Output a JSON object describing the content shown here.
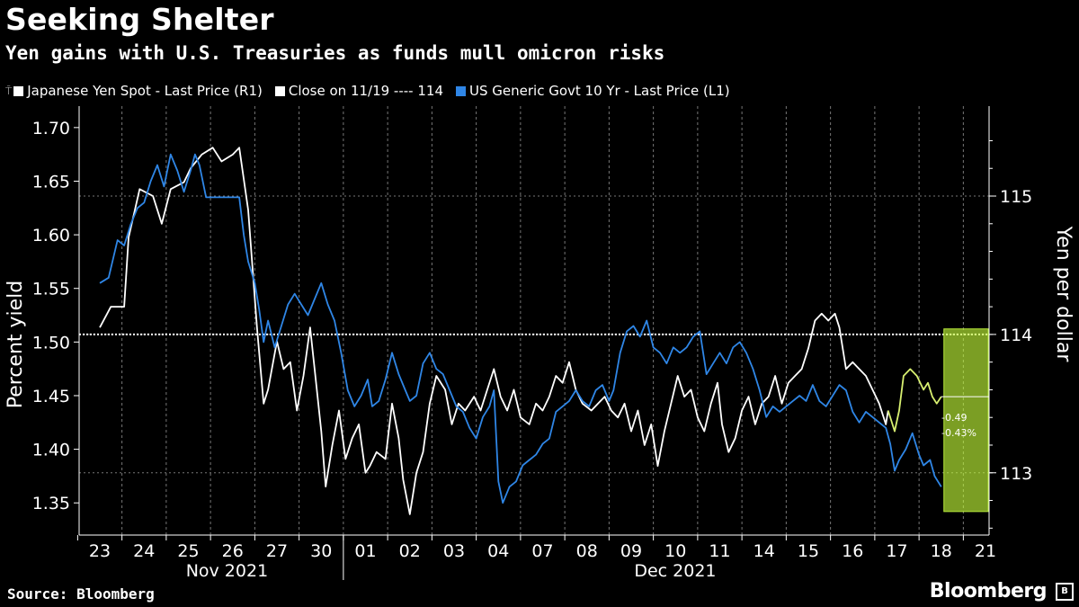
{
  "title": "Seeking Shelter",
  "subtitle": "Yen gains with U.S. Treasuries as funds mull omicron risks",
  "legend": [
    {
      "label": "Japanese Yen Spot - Last Price (R1)",
      "color": "#ffffff"
    },
    {
      "label": "Close on 11/19 ---- 114",
      "color": "#ffffff"
    },
    {
      "label": "US Generic Govt 10 Yr - Last Price (L1)",
      "color": "#2f86e6"
    }
  ],
  "source": "Source: Bloomberg",
  "brand": "Bloomberg",
  "chart_data": {
    "type": "line",
    "ylabel_left": "Percent yield",
    "ylabel_right": "Yen per dollar",
    "ylim_left": [
      1.32,
      1.72
    ],
    "ylim_right": [
      112.55,
      115.65
    ],
    "left_ticks": [
      "1.70",
      "1.65",
      "1.60",
      "1.55",
      "1.50",
      "1.45",
      "1.40",
      "1.35"
    ],
    "right_ticks": [
      "115",
      "114",
      "113"
    ],
    "categories": [
      "23",
      "24",
      "25",
      "26",
      "27",
      "30",
      "01",
      "02",
      "03",
      "04",
      "07",
      "08",
      "09",
      "10",
      "11",
      "14",
      "15",
      "16",
      "17",
      "18",
      "21"
    ],
    "months": [
      "Nov 2021",
      "Dec 2021"
    ],
    "reference_line": {
      "label": "Close on 11/19",
      "value": 114
    },
    "highlight": {
      "from": "18",
      "to": "21"
    },
    "annotations": [
      "-0.49",
      "-0.43%"
    ],
    "series": [
      {
        "name": "Japanese Yen Spot - Last Price (R1)",
        "axis": "right",
        "color": "#ffffff",
        "points": [
          [
            0,
            114.05
          ],
          [
            0.25,
            114.2
          ],
          [
            0.55,
            114.2
          ],
          [
            0.65,
            114.7
          ],
          [
            0.9,
            115.05
          ],
          [
            1.2,
            115.0
          ],
          [
            1.4,
            114.8
          ],
          [
            1.6,
            115.05
          ],
          [
            1.9,
            115.1
          ],
          [
            2.05,
            115.2
          ],
          [
            2.3,
            115.3
          ],
          [
            2.55,
            115.35
          ],
          [
            2.75,
            115.25
          ],
          [
            3.0,
            115.3
          ],
          [
            3.15,
            115.35
          ],
          [
            3.35,
            114.9
          ],
          [
            3.55,
            114.05
          ],
          [
            3.7,
            113.5
          ],
          [
            3.8,
            113.6
          ],
          [
            4.0,
            113.95
          ],
          [
            4.15,
            113.75
          ],
          [
            4.3,
            113.8
          ],
          [
            4.45,
            113.45
          ],
          [
            4.6,
            113.7
          ],
          [
            4.75,
            114.05
          ],
          [
            4.85,
            113.75
          ],
          [
            5.0,
            113.3
          ],
          [
            5.1,
            112.9
          ],
          [
            5.25,
            113.2
          ],
          [
            5.4,
            113.45
          ],
          [
            5.55,
            113.1
          ],
          [
            5.7,
            113.25
          ],
          [
            5.85,
            113.35
          ],
          [
            6.0,
            113.0
          ],
          [
            6.1,
            113.05
          ],
          [
            6.25,
            113.15
          ],
          [
            6.45,
            113.1
          ],
          [
            6.6,
            113.5
          ],
          [
            6.75,
            113.25
          ],
          [
            6.85,
            112.95
          ],
          [
            7.0,
            112.7
          ],
          [
            7.15,
            113.0
          ],
          [
            7.3,
            113.15
          ],
          [
            7.45,
            113.5
          ],
          [
            7.6,
            113.7
          ],
          [
            7.8,
            113.6
          ],
          [
            7.95,
            113.35
          ],
          [
            8.1,
            113.5
          ],
          [
            8.25,
            113.45
          ],
          [
            8.45,
            113.55
          ],
          [
            8.6,
            113.45
          ],
          [
            8.75,
            113.6
          ],
          [
            8.9,
            113.75
          ],
          [
            9.05,
            113.55
          ],
          [
            9.2,
            113.45
          ],
          [
            9.35,
            113.6
          ],
          [
            9.5,
            113.4
          ],
          [
            9.7,
            113.35
          ],
          [
            9.85,
            113.5
          ],
          [
            10.0,
            113.45
          ],
          [
            10.15,
            113.55
          ],
          [
            10.3,
            113.7
          ],
          [
            10.45,
            113.65
          ],
          [
            10.6,
            113.8
          ],
          [
            10.75,
            113.6
          ],
          [
            10.9,
            113.5
          ],
          [
            11.1,
            113.45
          ],
          [
            11.25,
            113.5
          ],
          [
            11.4,
            113.55
          ],
          [
            11.55,
            113.45
          ],
          [
            11.7,
            113.4
          ],
          [
            11.85,
            113.5
          ],
          [
            12.0,
            113.3
          ],
          [
            12.15,
            113.45
          ],
          [
            12.3,
            113.2
          ],
          [
            12.45,
            113.35
          ],
          [
            12.6,
            113.05
          ],
          [
            12.75,
            113.3
          ],
          [
            12.9,
            113.5
          ],
          [
            13.05,
            113.7
          ],
          [
            13.2,
            113.55
          ],
          [
            13.35,
            113.6
          ],
          [
            13.5,
            113.4
          ],
          [
            13.65,
            113.3
          ],
          [
            13.8,
            113.5
          ],
          [
            13.95,
            113.65
          ],
          [
            14.05,
            113.35
          ],
          [
            14.2,
            113.15
          ],
          [
            14.35,
            113.25
          ],
          [
            14.5,
            113.45
          ],
          [
            14.65,
            113.55
          ],
          [
            14.8,
            113.35
          ],
          [
            14.95,
            113.5
          ],
          [
            15.1,
            113.55
          ],
          [
            15.25,
            113.7
          ],
          [
            15.4,
            113.5
          ],
          [
            15.55,
            113.65
          ],
          [
            15.7,
            113.7
          ],
          [
            15.85,
            113.75
          ],
          [
            16.0,
            113.9
          ],
          [
            16.15,
            114.1
          ],
          [
            16.3,
            114.15
          ],
          [
            16.45,
            114.1
          ],
          [
            16.6,
            114.15
          ],
          [
            16.7,
            114.05
          ],
          [
            16.85,
            113.75
          ],
          [
            17.0,
            113.8
          ],
          [
            17.15,
            113.75
          ],
          [
            17.3,
            113.7
          ],
          [
            17.45,
            113.6
          ],
          [
            17.6,
            113.5
          ],
          [
            17.75,
            113.35
          ],
          [
            17.8,
            113.45
          ]
        ]
      },
      {
        "name": "US Generic Govt 10 Yr - Last Price (L1)",
        "axis": "left",
        "color": "#2f86e6",
        "points": [
          [
            0,
            1.555
          ],
          [
            0.2,
            1.56
          ],
          [
            0.4,
            1.595
          ],
          [
            0.55,
            1.59
          ],
          [
            0.7,
            1.61
          ],
          [
            0.85,
            1.625
          ],
          [
            1.0,
            1.63
          ],
          [
            1.15,
            1.65
          ],
          [
            1.3,
            1.665
          ],
          [
            1.45,
            1.645
          ],
          [
            1.6,
            1.675
          ],
          [
            1.75,
            1.66
          ],
          [
            1.9,
            1.64
          ],
          [
            2.05,
            1.66
          ],
          [
            2.15,
            1.675
          ],
          [
            2.25,
            1.665
          ],
          [
            2.4,
            1.635
          ],
          [
            2.6,
            1.635
          ],
          [
            2.8,
            1.635
          ],
          [
            3.0,
            1.635
          ],
          [
            3.15,
            1.635
          ],
          [
            3.25,
            1.6
          ],
          [
            3.35,
            1.575
          ],
          [
            3.5,
            1.555
          ],
          [
            3.6,
            1.53
          ],
          [
            3.7,
            1.5
          ],
          [
            3.8,
            1.52
          ],
          [
            3.95,
            1.495
          ],
          [
            4.1,
            1.515
          ],
          [
            4.25,
            1.535
          ],
          [
            4.4,
            1.545
          ],
          [
            4.55,
            1.535
          ],
          [
            4.7,
            1.525
          ],
          [
            4.85,
            1.54
          ],
          [
            5.0,
            1.555
          ],
          [
            5.15,
            1.535
          ],
          [
            5.3,
            1.52
          ],
          [
            5.45,
            1.49
          ],
          [
            5.6,
            1.455
          ],
          [
            5.75,
            1.44
          ],
          [
            5.9,
            1.45
          ],
          [
            6.05,
            1.465
          ],
          [
            6.15,
            1.44
          ],
          [
            6.3,
            1.445
          ],
          [
            6.45,
            1.465
          ],
          [
            6.6,
            1.49
          ],
          [
            6.75,
            1.47
          ],
          [
            6.9,
            1.455
          ],
          [
            7.0,
            1.445
          ],
          [
            7.15,
            1.45
          ],
          [
            7.3,
            1.48
          ],
          [
            7.45,
            1.49
          ],
          [
            7.6,
            1.475
          ],
          [
            7.75,
            1.47
          ],
          [
            7.9,
            1.455
          ],
          [
            8.05,
            1.44
          ],
          [
            8.2,
            1.435
          ],
          [
            8.35,
            1.42
          ],
          [
            8.5,
            1.41
          ],
          [
            8.65,
            1.43
          ],
          [
            8.8,
            1.44
          ],
          [
            8.9,
            1.455
          ],
          [
            9.0,
            1.37
          ],
          [
            9.1,
            1.35
          ],
          [
            9.25,
            1.365
          ],
          [
            9.4,
            1.37
          ],
          [
            9.55,
            1.385
          ],
          [
            9.7,
            1.39
          ],
          [
            9.85,
            1.395
          ],
          [
            10.0,
            1.405
          ],
          [
            10.15,
            1.41
          ],
          [
            10.3,
            1.435
          ],
          [
            10.45,
            1.44
          ],
          [
            10.6,
            1.445
          ],
          [
            10.75,
            1.455
          ],
          [
            10.9,
            1.445
          ],
          [
            11.05,
            1.44
          ],
          [
            11.2,
            1.455
          ],
          [
            11.35,
            1.46
          ],
          [
            11.5,
            1.445
          ],
          [
            11.6,
            1.455
          ],
          [
            11.75,
            1.49
          ],
          [
            11.9,
            1.51
          ],
          [
            12.05,
            1.515
          ],
          [
            12.2,
            1.505
          ],
          [
            12.35,
            1.52
          ],
          [
            12.5,
            1.495
          ],
          [
            12.65,
            1.49
          ],
          [
            12.8,
            1.48
          ],
          [
            12.95,
            1.495
          ],
          [
            13.1,
            1.49
          ],
          [
            13.25,
            1.495
          ],
          [
            13.4,
            1.505
          ],
          [
            13.55,
            1.51
          ],
          [
            13.7,
            1.47
          ],
          [
            13.85,
            1.48
          ],
          [
            14.0,
            1.49
          ],
          [
            14.15,
            1.48
          ],
          [
            14.3,
            1.495
          ],
          [
            14.45,
            1.5
          ],
          [
            14.6,
            1.49
          ],
          [
            14.75,
            1.475
          ],
          [
            14.9,
            1.455
          ],
          [
            15.05,
            1.43
          ],
          [
            15.2,
            1.44
          ],
          [
            15.35,
            1.435
          ],
          [
            15.5,
            1.44
          ],
          [
            15.65,
            1.445
          ],
          [
            15.8,
            1.45
          ],
          [
            15.95,
            1.445
          ],
          [
            16.1,
            1.46
          ],
          [
            16.25,
            1.445
          ],
          [
            16.4,
            1.44
          ],
          [
            16.55,
            1.45
          ],
          [
            16.7,
            1.46
          ],
          [
            16.85,
            1.455
          ],
          [
            17.0,
            1.435
          ],
          [
            17.15,
            1.425
          ],
          [
            17.3,
            1.435
          ],
          [
            17.45,
            1.43
          ],
          [
            17.6,
            1.425
          ],
          [
            17.75,
            1.42
          ],
          [
            17.85,
            1.405
          ],
          [
            17.95,
            1.38
          ],
          [
            18.05,
            1.39
          ],
          [
            18.2,
            1.4
          ],
          [
            18.35,
            1.415
          ],
          [
            18.5,
            1.395
          ],
          [
            18.6,
            1.385
          ],
          [
            18.75,
            1.39
          ],
          [
            18.85,
            1.375
          ],
          [
            19.0,
            1.365
          ]
        ]
      },
      {
        "name": "Japanese Yen Spot - Last Price (R1)",
        "axis": "right",
        "color": "#d8f070",
        "highlight": true,
        "points": [
          [
            17.8,
            113.45
          ],
          [
            17.95,
            113.3
          ],
          [
            18.05,
            113.45
          ],
          [
            18.15,
            113.7
          ],
          [
            18.3,
            113.75
          ],
          [
            18.45,
            113.7
          ],
          [
            18.6,
            113.6
          ],
          [
            18.7,
            113.65
          ],
          [
            18.8,
            113.55
          ],
          [
            18.9,
            113.5
          ],
          [
            19.0,
            113.55
          ]
        ]
      }
    ]
  }
}
